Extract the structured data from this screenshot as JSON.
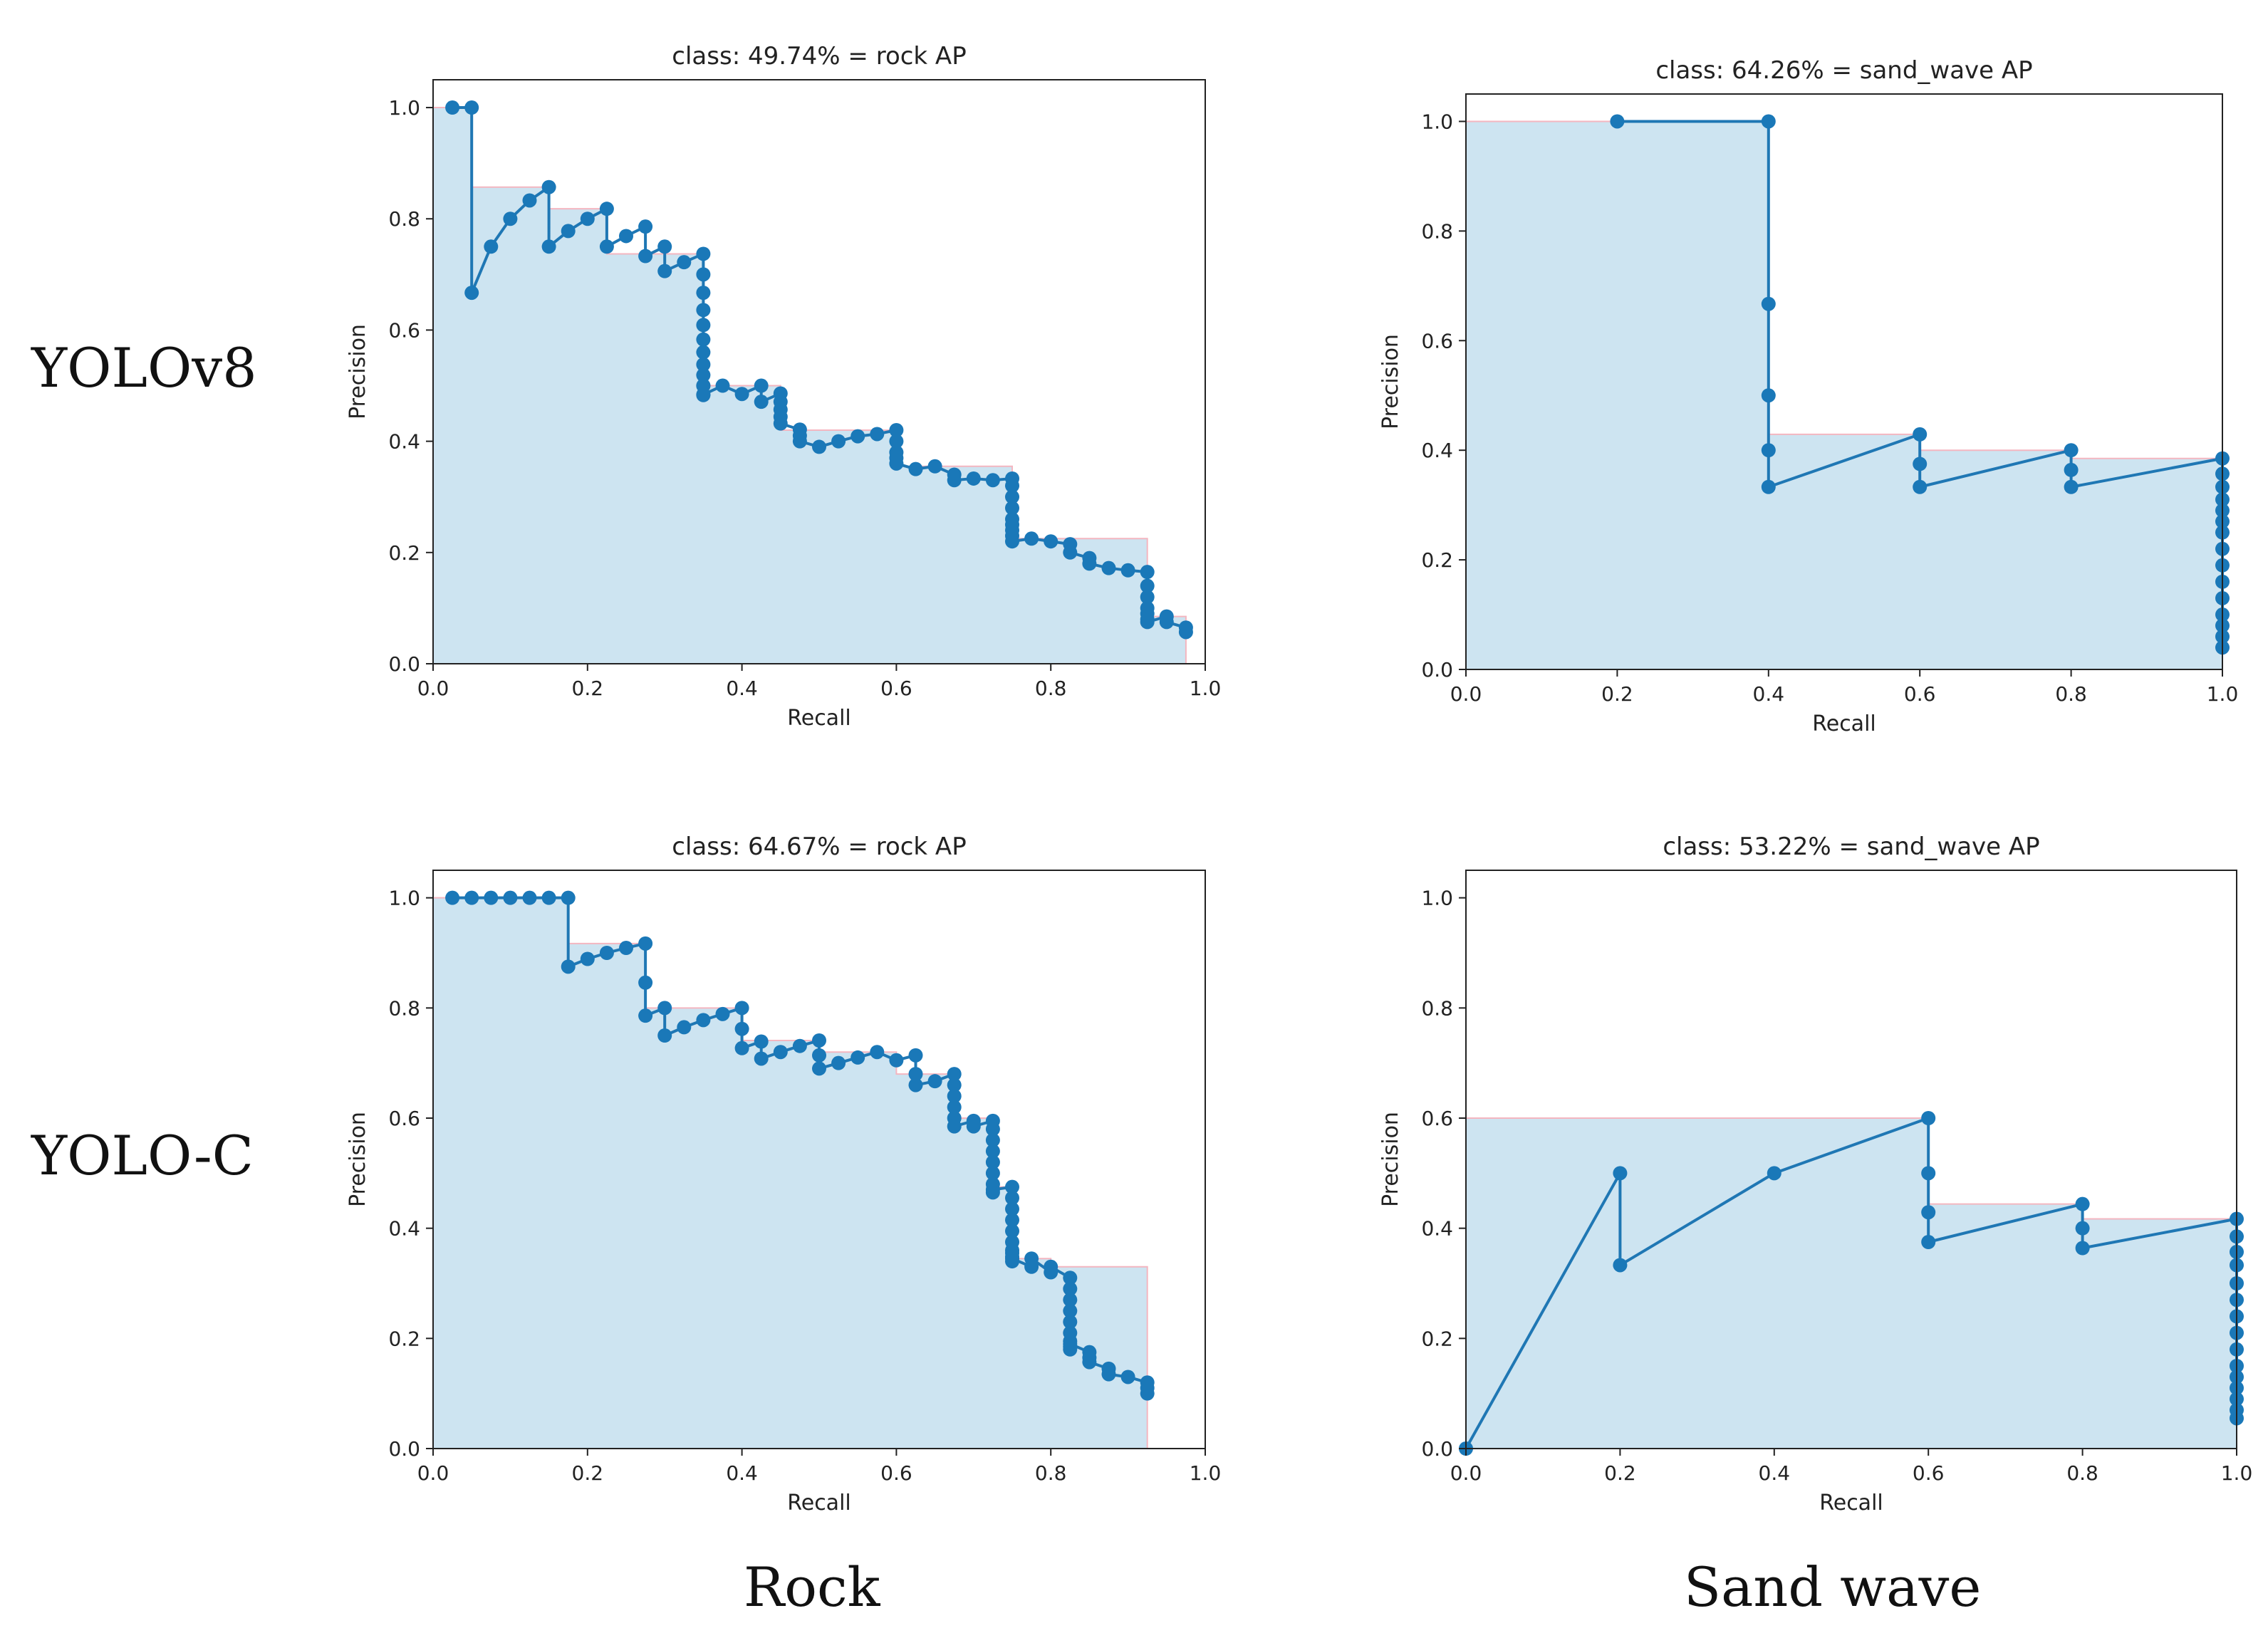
{
  "labels": {
    "rows": [
      "YOLOv8",
      "YOLO-C"
    ],
    "columns": [
      "Rock",
      "Sand wave"
    ]
  },
  "colors": {
    "fill": "#cde4f1",
    "line": "#1f77b4",
    "marker": "#1a78b8",
    "envelope": "#f4b6c0"
  },
  "chart_data": [
    {
      "type": "line",
      "title": "class: 49.74% = rock AP",
      "xlabel": "Recall",
      "ylabel": "Precision",
      "xlim": [
        0,
        1
      ],
      "ylim": [
        0,
        1.05
      ],
      "xticks": [
        "0.0",
        "0.2",
        "0.4",
        "0.6",
        "0.8",
        "1.0"
      ],
      "yticks": [
        "0.0",
        "0.2",
        "0.4",
        "0.6",
        "0.8",
        "1.0"
      ],
      "series": [
        {
          "name": "precision-recall",
          "x": [
            0.025,
            0.05,
            0.05,
            0.075,
            0.1,
            0.125,
            0.15,
            0.15,
            0.175,
            0.2,
            0.225,
            0.225,
            0.25,
            0.275,
            0.275,
            0.3,
            0.3,
            0.325,
            0.35,
            0.35,
            0.35,
            0.35,
            0.35,
            0.35,
            0.35,
            0.35,
            0.35,
            0.35,
            0.35,
            0.35,
            0.35,
            0.375,
            0.4,
            0.425,
            0.425,
            0.45,
            0.45,
            0.45,
            0.45,
            0.45,
            0.475,
            0.475,
            0.475,
            0.5,
            0.525,
            0.55,
            0.575,
            0.6,
            0.6,
            0.6,
            0.6,
            0.6,
            0.625,
            0.65,
            0.675,
            0.675,
            0.7,
            0.725,
            0.75,
            0.75,
            0.75,
            0.75,
            0.75,
            0.75,
            0.75,
            0.75,
            0.75,
            0.775,
            0.8,
            0.825,
            0.825,
            0.85,
            0.85,
            0.875,
            0.9,
            0.925,
            0.925,
            0.925,
            0.925,
            0.925,
            0.925,
            0.925,
            0.95,
            0.95,
            0.975,
            0.975
          ],
          "y": [
            1.0,
            1.0,
            0.667,
            0.75,
            0.8,
            0.833,
            0.857,
            0.75,
            0.778,
            0.8,
            0.818,
            0.75,
            0.769,
            0.786,
            0.733,
            0.75,
            0.706,
            0.722,
            0.737,
            0.7,
            0.667,
            0.636,
            0.609,
            0.583,
            0.56,
            0.538,
            0.519,
            0.5,
            0.483,
            0.5,
            0.484,
            0.5,
            0.485,
            0.5,
            0.471,
            0.486,
            0.471,
            0.457,
            0.444,
            0.432,
            0.421,
            0.41,
            0.4,
            0.39,
            0.4,
            0.409,
            0.413,
            0.42,
            0.4,
            0.38,
            0.37,
            0.36,
            0.35,
            0.355,
            0.34,
            0.33,
            0.333,
            0.33,
            0.333,
            0.32,
            0.3,
            0.28,
            0.26,
            0.25,
            0.24,
            0.23,
            0.22,
            0.225,
            0.22,
            0.215,
            0.2,
            0.19,
            0.18,
            0.172,
            0.168,
            0.165,
            0.14,
            0.12,
            0.1,
            0.09,
            0.08,
            0.075,
            0.085,
            0.075,
            0.065,
            0.057
          ]
        }
      ],
      "envelope": {
        "x": [
          0,
          0.05,
          0.05,
          0.15,
          0.15,
          0.225,
          0.225,
          0.35,
          0.35,
          0.45,
          0.45,
          0.6,
          0.6,
          0.75,
          0.75,
          0.925,
          0.925,
          0.975,
          0.975
        ],
        "y": [
          1.0,
          1.0,
          0.857,
          0.857,
          0.818,
          0.818,
          0.737,
          0.737,
          0.5,
          0.5,
          0.42,
          0.42,
          0.355,
          0.355,
          0.225,
          0.225,
          0.085,
          0.085,
          0
        ]
      }
    },
    {
      "type": "line",
      "title": "class: 64.26% = sand_wave AP",
      "xlabel": "Recall",
      "ylabel": "Precision",
      "xlim": [
        0,
        1
      ],
      "ylim": [
        0,
        1.05
      ],
      "xticks": [
        "0.0",
        "0.2",
        "0.4",
        "0.6",
        "0.8",
        "1.0"
      ],
      "yticks": [
        "0.0",
        "0.2",
        "0.4",
        "0.6",
        "0.8",
        "1.0"
      ],
      "series": [
        {
          "name": "precision-recall",
          "x": [
            0.2,
            0.4,
            0.4,
            0.4,
            0.4,
            0.4,
            0.6,
            0.6,
            0.6,
            0.8,
            0.8,
            0.8,
            1.0,
            1.0,
            1.0,
            1.0,
            1.0,
            1.0,
            1.0,
            1.0,
            1.0,
            1.0,
            1.0,
            1.0,
            1.0,
            1.0,
            1.0
          ],
          "y": [
            1.0,
            1.0,
            0.667,
            0.5,
            0.4,
            0.333,
            0.429,
            0.375,
            0.333,
            0.4,
            0.364,
            0.333,
            0.385,
            0.357,
            0.333,
            0.31,
            0.29,
            0.27,
            0.25,
            0.22,
            0.19,
            0.16,
            0.13,
            0.1,
            0.08,
            0.06,
            0.04
          ]
        }
      ],
      "envelope": {
        "x": [
          0,
          0.4,
          0.4,
          0.6,
          0.6,
          0.8,
          0.8,
          1.0,
          1.0
        ],
        "y": [
          1.0,
          1.0,
          0.429,
          0.429,
          0.4,
          0.4,
          0.385,
          0.385,
          0.04
        ]
      }
    },
    {
      "type": "line",
      "title": "class: 64.67% = rock AP",
      "xlabel": "Recall",
      "ylabel": "Precision",
      "xlim": [
        0,
        1
      ],
      "ylim": [
        0,
        1.05
      ],
      "xticks": [
        "0.0",
        "0.2",
        "0.4",
        "0.6",
        "0.8",
        "1.0"
      ],
      "yticks": [
        "0.0",
        "0.2",
        "0.4",
        "0.6",
        "0.8",
        "1.0"
      ],
      "series": [
        {
          "name": "precision-recall",
          "x": [
            0.025,
            0.05,
            0.075,
            0.1,
            0.125,
            0.15,
            0.175,
            0.175,
            0.2,
            0.225,
            0.25,
            0.275,
            0.275,
            0.275,
            0.3,
            0.3,
            0.325,
            0.35,
            0.375,
            0.4,
            0.4,
            0.4,
            0.425,
            0.425,
            0.45,
            0.475,
            0.5,
            0.5,
            0.5,
            0.525,
            0.55,
            0.575,
            0.6,
            0.625,
            0.625,
            0.625,
            0.65,
            0.675,
            0.675,
            0.675,
            0.675,
            0.675,
            0.675,
            0.7,
            0.7,
            0.725,
            0.725,
            0.725,
            0.725,
            0.725,
            0.725,
            0.725,
            0.725,
            0.725,
            0.75,
            0.75,
            0.75,
            0.75,
            0.75,
            0.75,
            0.75,
            0.75,
            0.75,
            0.75,
            0.75,
            0.775,
            0.775,
            0.8,
            0.8,
            0.825,
            0.825,
            0.825,
            0.825,
            0.825,
            0.825,
            0.825,
            0.825,
            0.825,
            0.825,
            0.85,
            0.85,
            0.85,
            0.875,
            0.875,
            0.9,
            0.925,
            0.925,
            0.925
          ],
          "y": [
            1.0,
            1.0,
            1.0,
            1.0,
            1.0,
            1.0,
            1.0,
            0.875,
            0.889,
            0.9,
            0.909,
            0.917,
            0.846,
            0.786,
            0.8,
            0.75,
            0.765,
            0.778,
            0.789,
            0.8,
            0.762,
            0.727,
            0.739,
            0.708,
            0.72,
            0.731,
            0.741,
            0.714,
            0.69,
            0.7,
            0.71,
            0.72,
            0.705,
            0.714,
            0.68,
            0.66,
            0.667,
            0.68,
            0.66,
            0.64,
            0.62,
            0.6,
            0.585,
            0.595,
            0.585,
            0.595,
            0.58,
            0.56,
            0.54,
            0.52,
            0.5,
            0.48,
            0.465,
            0.47,
            0.475,
            0.455,
            0.435,
            0.415,
            0.395,
            0.375,
            0.36,
            0.355,
            0.348,
            0.34,
            0.345,
            0.33,
            0.345,
            0.32,
            0.33,
            0.31,
            0.29,
            0.27,
            0.25,
            0.23,
            0.21,
            0.195,
            0.185,
            0.18,
            0.19,
            0.175,
            0.165,
            0.157,
            0.145,
            0.135,
            0.13,
            0.12,
            0.11,
            0.1
          ]
        }
      ],
      "envelope": {
        "x": [
          0,
          0.175,
          0.175,
          0.275,
          0.275,
          0.4,
          0.4,
          0.5,
          0.5,
          0.6,
          0.6,
          0.675,
          0.675,
          0.725,
          0.725,
          0.75,
          0.75,
          0.8,
          0.8,
          0.925,
          0.925
        ],
        "y": [
          1.0,
          1.0,
          0.917,
          0.917,
          0.8,
          0.8,
          0.741,
          0.741,
          0.72,
          0.72,
          0.68,
          0.68,
          0.6,
          0.6,
          0.475,
          0.475,
          0.345,
          0.345,
          0.33,
          0.33,
          0
        ]
      }
    },
    {
      "type": "line",
      "title": "class: 53.22% = sand_wave AP",
      "xlabel": "Recall",
      "ylabel": "Precision",
      "xlim": [
        0,
        1
      ],
      "ylim": [
        0,
        1.05
      ],
      "xticks": [
        "0.0",
        "0.2",
        "0.4",
        "0.6",
        "0.8",
        "1.0"
      ],
      "yticks": [
        "0.0",
        "0.2",
        "0.4",
        "0.6",
        "0.8",
        "1.0"
      ],
      "series": [
        {
          "name": "precision-recall",
          "x": [
            0.0,
            0.2,
            0.2,
            0.4,
            0.6,
            0.6,
            0.6,
            0.6,
            0.8,
            0.8,
            0.8,
            1.0,
            1.0,
            1.0,
            1.0,
            1.0,
            1.0,
            1.0,
            1.0,
            1.0,
            1.0,
            1.0,
            1.0,
            1.0,
            1.0,
            1.0
          ],
          "y": [
            0.0,
            0.5,
            0.333,
            0.5,
            0.6,
            0.5,
            0.429,
            0.375,
            0.444,
            0.4,
            0.364,
            0.417,
            0.385,
            0.357,
            0.333,
            0.3,
            0.27,
            0.24,
            0.21,
            0.18,
            0.15,
            0.13,
            0.11,
            0.09,
            0.07,
            0.055
          ]
        }
      ],
      "envelope": {
        "x": [
          0,
          0.6,
          0.6,
          0.8,
          0.8,
          1.0,
          1.0
        ],
        "y": [
          0.6,
          0.6,
          0.444,
          0.444,
          0.417,
          0.417,
          0.055
        ]
      }
    }
  ]
}
